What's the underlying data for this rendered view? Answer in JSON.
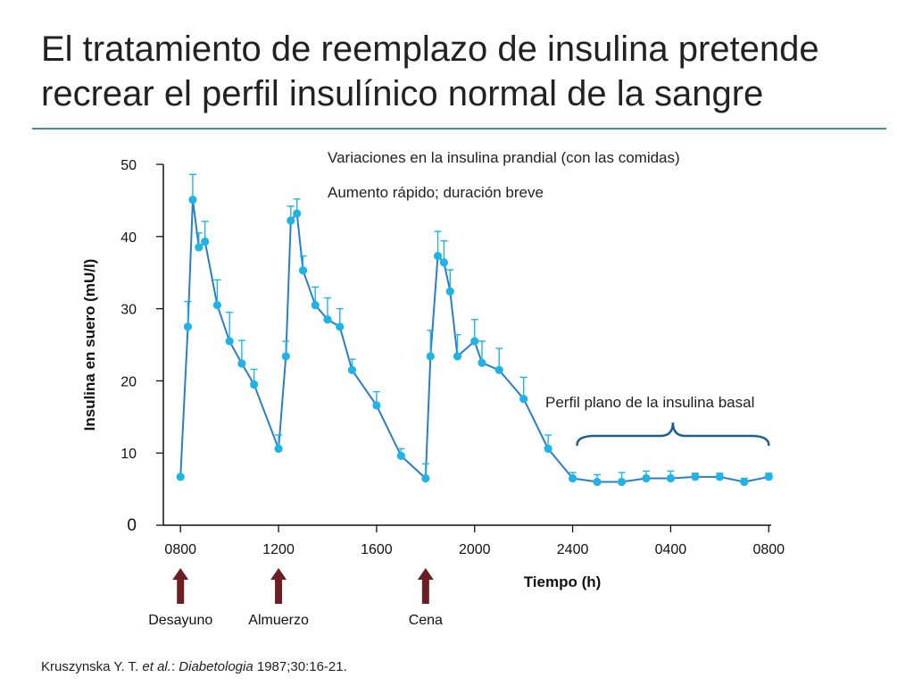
{
  "slide": {
    "title_line1": "El tratamiento de reemplazo de insulina pretende",
    "title_line2": "recrear el perfil insulínico normal de la sangre"
  },
  "citation": {
    "authors": "Kruszynska Y. T. ",
    "etal": "et al.",
    "sep": ": ",
    "journal": "Diabetologia",
    "rest": " 1987;30:16-21."
  },
  "colors": {
    "series": "#1fb3e8",
    "line": "#2a7fc4",
    "arrow": "#6b1f24",
    "brace": "#1f5f8f",
    "rule": "#3a8fb0"
  },
  "chart_data": {
    "type": "line",
    "title": "",
    "xlabel": "Tiempo (h)",
    "ylabel": "Insulina en suero (mU/l)",
    "ylim": [
      0,
      50
    ],
    "yticks": [
      0,
      10,
      20,
      30,
      40,
      50
    ],
    "xlim": [
      7.3,
      32.1
    ],
    "xticks": [
      {
        "label": "0800",
        "x": 8
      },
      {
        "label": "1200",
        "x": 12
      },
      {
        "label": "1600",
        "x": 16
      },
      {
        "label": "2000",
        "x": 20
      },
      {
        "label": "2400",
        "x": 24
      },
      {
        "label": "0400",
        "x": 28
      },
      {
        "label": "0800",
        "x": 32
      }
    ],
    "series": [
      {
        "name": "Insulina en suero",
        "points": [
          {
            "x": 8.0,
            "y": 6.7,
            "err": 0
          },
          {
            "x": 8.3,
            "y": 27.5,
            "err": 3.5
          },
          {
            "x": 8.5,
            "y": 45.1,
            "err": 3.5
          },
          {
            "x": 8.75,
            "y": 38.5,
            "err": 2.0
          },
          {
            "x": 9.0,
            "y": 39.3,
            "err": 2.8
          },
          {
            "x": 9.5,
            "y": 30.5,
            "err": 3.5
          },
          {
            "x": 10.0,
            "y": 25.5,
            "err": 4.0
          },
          {
            "x": 10.5,
            "y": 22.4,
            "err": 3.2
          },
          {
            "x": 11.0,
            "y": 19.5,
            "err": 2.1
          },
          {
            "x": 12.0,
            "y": 10.6,
            "err": 1.9
          },
          {
            "x": 12.3,
            "y": 23.4,
            "err": 2.1
          },
          {
            "x": 12.5,
            "y": 42.2,
            "err": 2.0
          },
          {
            "x": 12.75,
            "y": 43.2,
            "err": 2.0
          },
          {
            "x": 13.0,
            "y": 35.3,
            "err": 2.0
          },
          {
            "x": 13.5,
            "y": 30.5,
            "err": 2.5
          },
          {
            "x": 14.0,
            "y": 28.5,
            "err": 3.0
          },
          {
            "x": 14.5,
            "y": 27.5,
            "err": 2.5
          },
          {
            "x": 15.0,
            "y": 21.5,
            "err": 1.5
          },
          {
            "x": 16.0,
            "y": 16.6,
            "err": 1.9
          },
          {
            "x": 17.0,
            "y": 9.6,
            "err": 1.0
          },
          {
            "x": 18.0,
            "y": 6.5,
            "err": 2.0
          },
          {
            "x": 18.2,
            "y": 23.4,
            "err": 3.6
          },
          {
            "x": 18.5,
            "y": 37.3,
            "err": 3.4
          },
          {
            "x": 18.75,
            "y": 36.4,
            "err": 3.0
          },
          {
            "x": 19.0,
            "y": 32.4,
            "err": 3.0
          },
          {
            "x": 19.3,
            "y": 23.4,
            "err": 3.0
          },
          {
            "x": 20.0,
            "y": 25.5,
            "err": 3.0
          },
          {
            "x": 20.3,
            "y": 22.5,
            "err": 3.0
          },
          {
            "x": 21.0,
            "y": 21.5,
            "err": 3.0
          },
          {
            "x": 22.0,
            "y": 17.5,
            "err": 3.0
          },
          {
            "x": 23.0,
            "y": 10.6,
            "err": 1.9
          },
          {
            "x": 24.0,
            "y": 6.5,
            "err": 0.8
          },
          {
            "x": 25.0,
            "y": 6.0,
            "err": 1.0
          },
          {
            "x": 26.0,
            "y": 6.0,
            "err": 1.3
          },
          {
            "x": 27.0,
            "y": 6.5,
            "err": 1.0
          },
          {
            "x": 28.0,
            "y": 6.5,
            "err": 1.0
          },
          {
            "x": 29.0,
            "y": 6.7,
            "err": 0.5
          },
          {
            "x": 30.0,
            "y": 6.7,
            "err": 0.5
          },
          {
            "x": 31.0,
            "y": 6.0,
            "err": 0.5
          },
          {
            "x": 32.0,
            "y": 6.7,
            "err": 0.5
          }
        ]
      }
    ],
    "annotations": {
      "prandial_line1": "Variaciones en la insulina prandial (con las comidas)",
      "prandial_line2": "Aumento rápido; duración breve",
      "basal_label": "Perfil plano de la insulina basal",
      "basal_range": [
        24,
        32
      ]
    },
    "meals": [
      {
        "label": "Desayuno",
        "x": 8
      },
      {
        "label": "Almuerzo",
        "x": 12
      },
      {
        "label": "Cena",
        "x": 18
      }
    ]
  }
}
